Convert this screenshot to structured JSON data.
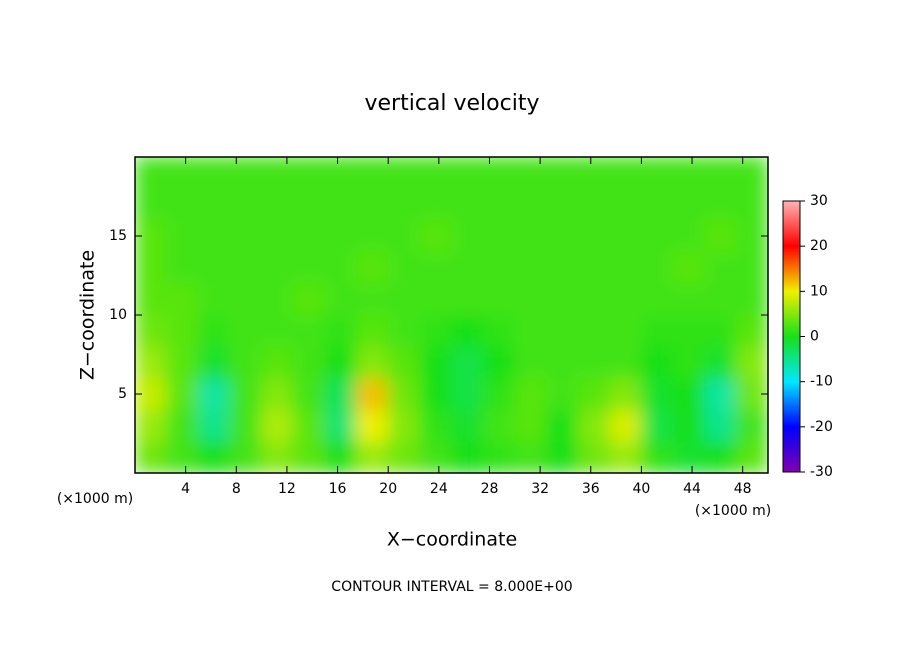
{
  "chart_data": {
    "type": "contour",
    "title": "vertical velocity",
    "xlabel": "X−coordinate",
    "ylabel": "Z−coordinate",
    "xunit": "(×1000 m)",
    "annotation": "CONTOUR INTERVAL = 8.000E+00",
    "xlim": [
      0,
      50
    ],
    "ylim": [
      0,
      20
    ],
    "xticks": [
      4,
      8,
      12,
      16,
      20,
      24,
      28,
      32,
      36,
      40,
      44,
      48
    ],
    "yticks": [
      5,
      10,
      15
    ],
    "clim": [
      -30,
      30
    ],
    "cticks": [
      -30,
      -20,
      -10,
      0,
      10,
      20,
      30
    ],
    "colormap": [
      "#8000b0",
      "#0000ff",
      "#00e8ff",
      "#18e018",
      "#f0f000",
      "#ff0000",
      "#ffb4b4"
    ],
    "x": [
      1.25,
      3.75,
      6.25,
      8.75,
      11.25,
      13.75,
      16.25,
      18.75,
      21.25,
      23.75,
      26.25,
      28.75,
      31.25,
      33.75,
      36.25,
      38.75,
      41.25,
      43.75,
      46.25,
      48.75
    ],
    "y": [
      1,
      3,
      5,
      7,
      9,
      11,
      13,
      15,
      17,
      19
    ],
    "values": [
      [
        4,
        2,
        0,
        2,
        5,
        3,
        0,
        6,
        4,
        2,
        0,
        1,
        2,
        0,
        4,
        6,
        1,
        -1,
        0,
        3
      ],
      [
        6,
        2,
        -5,
        2,
        7,
        3,
        -4,
        10,
        5,
        1,
        -1,
        2,
        3,
        0,
        5,
        9,
        -2,
        0,
        -5,
        2
      ],
      [
        8,
        3,
        -6,
        2,
        5,
        2,
        -3,
        12,
        4,
        0,
        -2,
        1,
        3,
        2,
        3,
        5,
        -1,
        0,
        -6,
        4
      ],
      [
        6,
        3,
        -1,
        2,
        3,
        2,
        0,
        5,
        3,
        0,
        -2,
        0,
        2,
        2,
        2,
        2,
        0,
        1,
        -1,
        5
      ],
      [
        4,
        3,
        1,
        2,
        2,
        2,
        1,
        3,
        2,
        1,
        0,
        1,
        2,
        2,
        2,
        2,
        1,
        1,
        1,
        3
      ],
      [
        3,
        3,
        2,
        2,
        2,
        3,
        2,
        2,
        2,
        2,
        2,
        2,
        2,
        2,
        2,
        2,
        2,
        2,
        2,
        2
      ],
      [
        3,
        2,
        2,
        2,
        2,
        2,
        2,
        3,
        2,
        2,
        2,
        2,
        2,
        2,
        2,
        2,
        2,
        3,
        2,
        2
      ],
      [
        3,
        2,
        2,
        2,
        2,
        2,
        2,
        2,
        2,
        3,
        2,
        2,
        2,
        2,
        2,
        2,
        2,
        2,
        3,
        2
      ],
      [
        2,
        2,
        2,
        2,
        2,
        2,
        2,
        2,
        2,
        2,
        2,
        2,
        2,
        2,
        2,
        2,
        2,
        2,
        2,
        2
      ],
      [
        2,
        2,
        2,
        2,
        2,
        2,
        2,
        2,
        2,
        2,
        2,
        2,
        2,
        2,
        2,
        2,
        2,
        2,
        2,
        2
      ]
    ]
  }
}
